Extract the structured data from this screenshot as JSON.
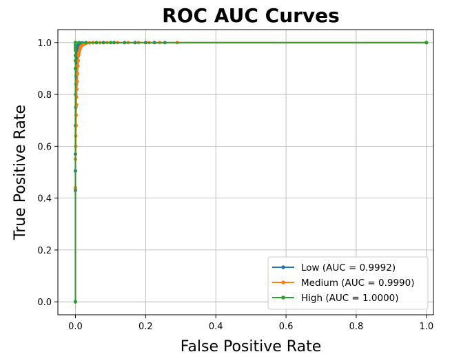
{
  "chart_data": {
    "type": "line",
    "title": "ROC AUC Curves",
    "xlabel": "False Positive Rate",
    "ylabel": "True Positive Rate",
    "xlim": [
      -0.05,
      1.02
    ],
    "ylim": [
      -0.05,
      1.05
    ],
    "xticks": [
      "0.0",
      "0.2",
      "0.4",
      "0.6",
      "0.8",
      "1.0"
    ],
    "yticks": [
      "0.0",
      "0.2",
      "0.4",
      "0.6",
      "0.8",
      "1.0"
    ],
    "grid": true,
    "legend_position": "lower-right",
    "series": [
      {
        "name": "Low (AUC = 0.9992)",
        "color": "#1f77b4",
        "points": [
          [
            0.0,
            0.0
          ],
          [
            0.0,
            0.43
          ],
          [
            0.0,
            0.505
          ],
          [
            0.0,
            0.57
          ],
          [
            0.0,
            0.68
          ],
          [
            0.001,
            0.75
          ],
          [
            0.001,
            0.8
          ],
          [
            0.002,
            0.84
          ],
          [
            0.002,
            0.87
          ],
          [
            0.002,
            0.9
          ],
          [
            0.003,
            0.92
          ],
          [
            0.003,
            0.94
          ],
          [
            0.004,
            0.95
          ],
          [
            0.005,
            0.96
          ],
          [
            0.005,
            0.97
          ],
          [
            0.006,
            0.975
          ],
          [
            0.007,
            0.98
          ],
          [
            0.008,
            0.985
          ],
          [
            0.009,
            0.99
          ],
          [
            0.01,
            0.993
          ],
          [
            0.012,
            0.996
          ],
          [
            0.014,
            0.998
          ],
          [
            0.02,
            0.999
          ],
          [
            0.03,
            1.0
          ],
          [
            0.05,
            1.0
          ],
          [
            0.08,
            1.0
          ],
          [
            0.11,
            1.0
          ],
          [
            0.14,
            1.0
          ],
          [
            0.17,
            1.0
          ],
          [
            0.2,
            1.0
          ],
          [
            0.225,
            1.0
          ],
          [
            0.255,
            1.0
          ],
          [
            1.0,
            1.0
          ]
        ]
      },
      {
        "name": "Medium (AUC = 0.9990)",
        "color": "#ff7f0e",
        "points": [
          [
            0.0,
            0.0
          ],
          [
            0.0,
            0.44
          ],
          [
            0.0,
            0.55
          ],
          [
            0.001,
            0.6
          ],
          [
            0.001,
            0.64
          ],
          [
            0.002,
            0.68
          ],
          [
            0.002,
            0.72
          ],
          [
            0.003,
            0.76
          ],
          [
            0.003,
            0.79
          ],
          [
            0.004,
            0.82
          ],
          [
            0.005,
            0.85
          ],
          [
            0.006,
            0.88
          ],
          [
            0.007,
            0.91
          ],
          [
            0.008,
            0.93
          ],
          [
            0.009,
            0.95
          ],
          [
            0.01,
            0.96
          ],
          [
            0.012,
            0.97
          ],
          [
            0.014,
            0.98
          ],
          [
            0.016,
            0.985
          ],
          [
            0.02,
            0.99
          ],
          [
            0.025,
            0.994
          ],
          [
            0.03,
            0.997
          ],
          [
            0.04,
            0.999
          ],
          [
            0.05,
            1.0
          ],
          [
            0.07,
            1.0
          ],
          [
            0.09,
            1.0
          ],
          [
            0.12,
            1.0
          ],
          [
            0.15,
            1.0
          ],
          [
            0.18,
            1.0
          ],
          [
            0.21,
            1.0
          ],
          [
            0.24,
            1.0
          ],
          [
            0.29,
            1.0
          ],
          [
            1.0,
            1.0
          ]
        ]
      },
      {
        "name": "High (AUC = 1.0000)",
        "color": "#2ca02c",
        "points": [
          [
            0.0,
            0.0
          ],
          [
            0.0,
            0.9
          ],
          [
            0.0,
            0.93
          ],
          [
            0.0,
            0.95
          ],
          [
            0.0,
            0.97
          ],
          [
            0.0,
            0.98
          ],
          [
            0.0,
            0.99
          ],
          [
            0.0,
            1.0
          ],
          [
            0.01,
            1.0
          ],
          [
            0.03,
            1.0
          ],
          [
            0.06,
            1.0
          ],
          [
            0.1,
            1.0
          ],
          [
            1.0,
            1.0
          ]
        ]
      }
    ]
  }
}
